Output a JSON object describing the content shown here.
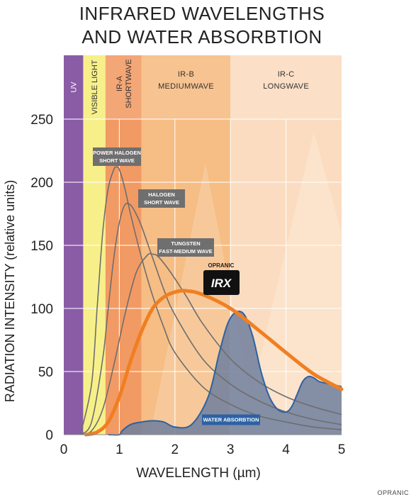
{
  "title": [
    "INFRARED WAVELENGTHS",
    "AND WATER ABSORBTION"
  ],
  "watermark": "OPRANIC",
  "colors": {
    "uv": "#8a5ca6",
    "visible": "#f7f08a",
    "ir_a": "#f29a63",
    "ir_b": "#f6bd84",
    "ir_c": "#fbdcc0",
    "halogen_curves": "#6e6e6e",
    "opranic_curve": "#f07f22",
    "water_fill": "#6e7f9d",
    "water_line": "#2c62a3",
    "label_box": "#6f6f6f",
    "water_label_box": "#2c62a3"
  },
  "chart_data": {
    "type": "line",
    "xlabel": "WAVELENGTH (µm)",
    "ylabel": "RADIATION INTENSITY (relative units)",
    "xlim": [
      0,
      5
    ],
    "ylim": [
      0,
      250
    ],
    "x_ticks": [
      0,
      1,
      2,
      3,
      4,
      5
    ],
    "y_ticks": [
      0,
      50,
      100,
      150,
      200,
      250
    ],
    "grid": true,
    "bands": [
      {
        "name": "UV",
        "lines": [
          "UV"
        ],
        "range": [
          0,
          0.35
        ],
        "vertical": true
      },
      {
        "name": "VISIBLE LIGHT",
        "lines": [
          "VISIBLE LIGHT"
        ],
        "range": [
          0.35,
          0.75
        ],
        "vertical": true
      },
      {
        "name": "IR-A SHORTWAVE",
        "lines": [
          "IR-A",
          "SHORTWAVE"
        ],
        "range": [
          0.75,
          1.4
        ],
        "vertical": true
      },
      {
        "name": "IR-B MEDIUMWAVE",
        "lines": [
          "IR-B",
          "MEDIUMWAVE"
        ],
        "range": [
          1.4,
          3.0
        ],
        "vertical": false
      },
      {
        "name": "IR-C LONGWAVE",
        "lines": [
          "IR-C",
          "LONGWAVE"
        ],
        "range": [
          3.0,
          5.0
        ],
        "vertical": false
      }
    ],
    "series": [
      {
        "name": "POWER HALOGEN SHORT WAVE",
        "label_lines": [
          "POWER HALOGEN",
          "SHORT WAVE"
        ],
        "x": [
          0.3,
          0.5,
          0.6,
          0.7,
          0.8,
          0.9,
          0.95,
          1.0,
          1.1,
          1.2,
          1.4,
          1.6,
          1.8,
          2.0,
          2.5,
          3.0,
          3.5,
          4.0,
          4.5,
          5.0
        ],
        "values": [
          0,
          40,
          100,
          160,
          195,
          210,
          212,
          210,
          195,
          175,
          140,
          110,
          85,
          65,
          38,
          24,
          15,
          10,
          6,
          4
        ]
      },
      {
        "name": "HALOGEN SHORT WAVE",
        "label_lines": [
          "HALOGEN",
          "SHORT WAVE"
        ],
        "x": [
          0.3,
          0.5,
          0.7,
          0.8,
          0.9,
          1.0,
          1.1,
          1.2,
          1.3,
          1.4,
          1.6,
          1.8,
          2.0,
          2.5,
          3.0,
          3.5,
          4.0,
          4.5,
          5.0
        ],
        "values": [
          0,
          10,
          60,
          100,
          140,
          168,
          182,
          182,
          175,
          165,
          140,
          115,
          95,
          60,
          40,
          27,
          18,
          12,
          8
        ]
      },
      {
        "name": "TUNGSTEN FAST-MEDIUM WAVE",
        "label_lines": [
          "TUNGSTEN",
          "FAST-MEDIUM WAVE"
        ],
        "x": [
          0.3,
          0.5,
          0.7,
          0.9,
          1.1,
          1.3,
          1.5,
          1.6,
          1.7,
          1.9,
          2.2,
          2.5,
          3.0,
          3.5,
          4.0,
          4.5,
          5.0
        ],
        "values": [
          0,
          3,
          20,
          55,
          95,
          128,
          142,
          143,
          141,
          130,
          110,
          88,
          60,
          42,
          30,
          22,
          16
        ]
      },
      {
        "name": "OPRANIC IRX",
        "label_lines": [
          "OPRANIC",
          "IRX"
        ],
        "x": [
          0.4,
          0.6,
          0.8,
          1.0,
          1.2,
          1.4,
          1.6,
          1.8,
          2.0,
          2.2,
          2.5,
          3.0,
          3.5,
          4.0,
          4.5,
          5.0
        ],
        "values": [
          0,
          2,
          10,
          30,
          58,
          82,
          100,
          109,
          113,
          114,
          111,
          100,
          83,
          65,
          48,
          36
        ]
      },
      {
        "name": "WATER ABSORBTION",
        "label_lines": [
          "WATER ABSORBTION"
        ],
        "x": [
          0.8,
          1.0,
          1.05,
          1.2,
          1.4,
          1.6,
          1.8,
          2.0,
          2.3,
          2.6,
          2.8,
          2.95,
          3.1,
          3.25,
          3.4,
          3.55,
          3.7,
          3.85,
          4.0,
          4.1,
          4.2,
          4.3,
          4.4,
          4.5,
          4.6,
          4.8,
          5.0
        ],
        "values": [
          0,
          0,
          3,
          8,
          10,
          11,
          10,
          6,
          8,
          30,
          65,
          88,
          97,
          95,
          78,
          50,
          30,
          20,
          18,
          22,
          32,
          42,
          46,
          45,
          42,
          40,
          38
        ]
      }
    ]
  }
}
